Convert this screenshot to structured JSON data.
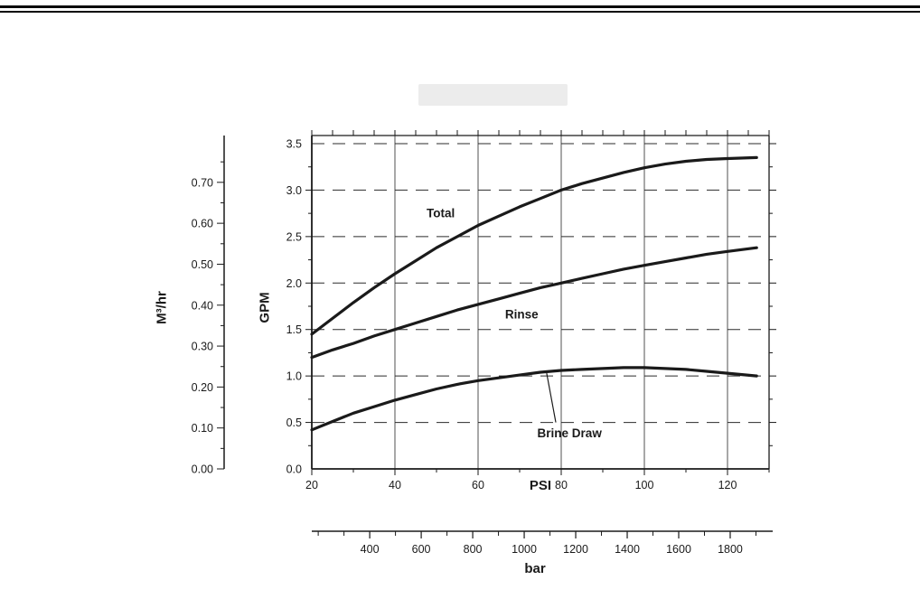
{
  "page": {
    "ink": "#1a1a1a",
    "background": "#ffffff"
  },
  "decorations": {
    "top_rule_count": 2,
    "faded_title_box": true
  },
  "chart_data": {
    "type": "line",
    "title": "",
    "x_axis": {
      "label": "PSI",
      "min": 20,
      "max": 130,
      "major_ticks": [
        20,
        40,
        60,
        80,
        100,
        120
      ],
      "minor_tick_step": 5
    },
    "y_axis": {
      "label": "GPM",
      "min": 0,
      "max": 3.5,
      "major_ticks": [
        0,
        0.5,
        1,
        1.5,
        2,
        2.5,
        3,
        3.5
      ],
      "tick_labels": [
        "0.0",
        "0.5",
        "1.0",
        "1.5",
        "2.0",
        "2.5",
        "3.0",
        "3.5"
      ]
    },
    "y2_axis": {
      "label": "M³/hr",
      "unit_per_gpm": 0.227,
      "major_ticks": [
        0,
        0.1,
        0.2,
        0.3,
        0.4,
        0.5,
        0.6,
        0.7
      ],
      "tick_labels": [
        "0.00",
        "0.10",
        "0.20",
        "0.30",
        "0.40",
        "0.50",
        "0.60",
        "0.70"
      ]
    },
    "x2_axis": {
      "label": "bar",
      "min": 175,
      "max": 1965,
      "major_ticks": [
        400,
        600,
        800,
        1000,
        1200,
        1400,
        1600,
        1800
      ],
      "minor_tick_step": 100
    },
    "grid": {
      "horizontal_style": "dashed",
      "vertical_style": "solid",
      "vertical_at": [
        40,
        60,
        80,
        100,
        120
      ],
      "horizontal_at": [
        0.5,
        1,
        1.5,
        2,
        2.5,
        3,
        3.5
      ]
    },
    "series": [
      {
        "name": "Total",
        "points": [
          [
            20,
            1.45
          ],
          [
            25,
            1.62
          ],
          [
            30,
            1.79
          ],
          [
            35,
            1.95
          ],
          [
            40,
            2.1
          ],
          [
            45,
            2.24
          ],
          [
            50,
            2.38
          ],
          [
            55,
            2.5
          ],
          [
            60,
            2.62
          ],
          [
            65,
            2.72
          ],
          [
            70,
            2.82
          ],
          [
            75,
            2.91
          ],
          [
            80,
            3.0
          ],
          [
            85,
            3.07
          ],
          [
            90,
            3.13
          ],
          [
            95,
            3.19
          ],
          [
            100,
            3.24
          ],
          [
            105,
            3.28
          ],
          [
            110,
            3.31
          ],
          [
            115,
            3.33
          ],
          [
            120,
            3.34
          ],
          [
            127,
            3.35
          ]
        ]
      },
      {
        "name": "Rinse",
        "points": [
          [
            20,
            1.2
          ],
          [
            25,
            1.28
          ],
          [
            30,
            1.35
          ],
          [
            35,
            1.43
          ],
          [
            40,
            1.5
          ],
          [
            45,
            1.57
          ],
          [
            50,
            1.64
          ],
          [
            55,
            1.71
          ],
          [
            60,
            1.77
          ],
          [
            65,
            1.83
          ],
          [
            70,
            1.89
          ],
          [
            75,
            1.95
          ],
          [
            80,
            2.0
          ],
          [
            85,
            2.05
          ],
          [
            90,
            2.1
          ],
          [
            95,
            2.15
          ],
          [
            100,
            2.19
          ],
          [
            105,
            2.23
          ],
          [
            110,
            2.27
          ],
          [
            115,
            2.31
          ],
          [
            120,
            2.34
          ],
          [
            127,
            2.38
          ]
        ]
      },
      {
        "name": "Brine Draw",
        "points": [
          [
            20,
            0.42
          ],
          [
            25,
            0.51
          ],
          [
            30,
            0.6
          ],
          [
            35,
            0.67
          ],
          [
            40,
            0.74
          ],
          [
            45,
            0.8
          ],
          [
            50,
            0.86
          ],
          [
            55,
            0.91
          ],
          [
            60,
            0.95
          ],
          [
            65,
            0.98
          ],
          [
            70,
            1.01
          ],
          [
            75,
            1.04
          ],
          [
            80,
            1.06
          ],
          [
            85,
            1.07
          ],
          [
            90,
            1.08
          ],
          [
            95,
            1.09
          ],
          [
            100,
            1.09
          ],
          [
            105,
            1.08
          ],
          [
            110,
            1.07
          ],
          [
            115,
            1.05
          ],
          [
            120,
            1.03
          ],
          [
            127,
            1.0
          ]
        ]
      }
    ],
    "annotations": [
      {
        "text": "Total",
        "x": 51,
        "y": 2.71
      },
      {
        "text": "Rinse",
        "x": 70.5,
        "y": 1.62
      },
      {
        "text": "Brine Draw",
        "x": 82,
        "y": 0.34
      }
    ],
    "leader_line": {
      "x1": 78.7,
      "y1": 0.5,
      "x2": 76.5,
      "y2": 1.03
    }
  }
}
